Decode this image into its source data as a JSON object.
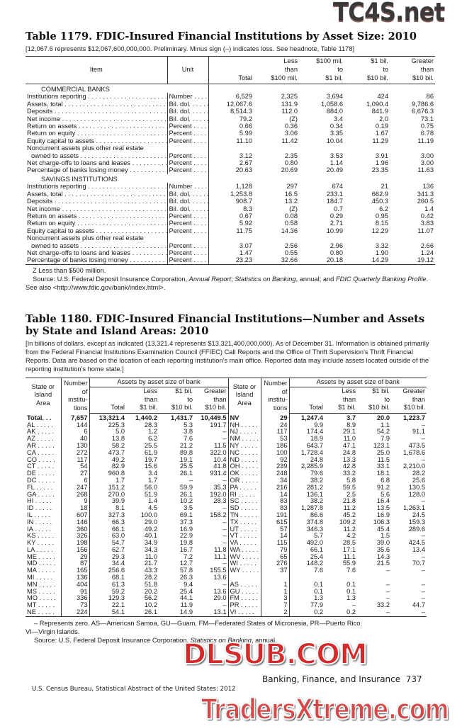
{
  "table1179": {
    "title": "Table 1179. FDIC-Insured Financial Institutions by Asset Size: 2010",
    "headnote": "[12,067.6 represents $12,067,600,000,000. Preliminary. Minus sign (–) indicates loss. See headnote, Table 1178]",
    "headers": {
      "item": "Item",
      "unit": "Unit",
      "total": "Total",
      "less": [
        "Less",
        "than",
        "$100 mil."
      ],
      "mid": [
        "$100 mil.",
        "to",
        "$1 bil."
      ],
      "big": [
        "$1 bil.",
        "to",
        "$10 bil."
      ],
      "greater": [
        "Greater",
        "than",
        "$10 bil."
      ]
    },
    "sections": [
      {
        "name": "COMMERCIAL BANKS",
        "rows": [
          {
            "item": "Institutions reporting",
            "unit": "Number",
            "v": [
              "6,529",
              "2,325",
              "3,694",
              "424",
              "86"
            ]
          },
          {
            "item": "Assets, total",
            "unit": "Bil. dol.",
            "v": [
              "12,067.6",
              "131.9",
              "1,058.6",
              "1,090.4",
              "9,786.6"
            ]
          },
          {
            "item": "Deposits",
            "unit": "Bil. dol.",
            "v": [
              "8,514.3",
              "112.0",
              "884.0",
              "841.9",
              "6,676.3"
            ]
          },
          {
            "item": "Net income",
            "unit": "Bil. dol.",
            "v": [
              "79.2",
              "(Z)",
              "3.4",
              "2.0",
              "73.1"
            ]
          },
          {
            "item": "Return on assets",
            "unit": "Percent",
            "v": [
              "0.66",
              "0.36",
              "0.34",
              "0.19",
              "0.75"
            ]
          },
          {
            "item": "Return on equity",
            "unit": "Percent",
            "v": [
              "5.99",
              "3.06",
              "3.35",
              "1.67",
              "6.78"
            ]
          },
          {
            "item": "Equity capital to assets",
            "unit": "Percent",
            "v": [
              "11.10",
              "11.42",
              "10.04",
              "11.29",
              "11.19"
            ]
          },
          {
            "item": "Noncurrent assets plus other real estate",
            "unit": "",
            "v": null
          },
          {
            "item": "owned to assets",
            "unit": "Percent",
            "v": [
              "3.12",
              "2.35",
              "3.53",
              "3.91",
              "3.00"
            ],
            "indent": true
          },
          {
            "item": "Net charge-offs to loans and leases",
            "unit": "Percent",
            "v": [
              "2.67",
              "0.80",
              "1.14",
              "1.96",
              "3.00"
            ]
          },
          {
            "item": "Percentage of banks losing money",
            "unit": "Percent",
            "v": [
              "20.63",
              "20.69",
              "20.49",
              "23.35",
              "11.63"
            ]
          }
        ]
      },
      {
        "name": "SAVINGS INSTITUTIONS",
        "rows": [
          {
            "item": "Institutions reporting",
            "unit": "Number",
            "v": [
              "1,128",
              "297",
              "674",
              "21",
              "136"
            ]
          },
          {
            "item": "Assets, total",
            "unit": "Bil. dol.",
            "v": [
              "1,253.8",
              "16.5",
              "233.1",
              "662.9",
              "341.3"
            ]
          },
          {
            "item": "Deposits",
            "unit": "Bil. dol.",
            "v": [
              "908.7",
              "13.2",
              "184.7",
              "450.3",
              "260.5"
            ]
          },
          {
            "item": "Net income",
            "unit": "Bil. dol.",
            "v": [
              "8.3",
              "(Z)",
              "0.7",
              "6.2",
              "1.4"
            ]
          },
          {
            "item": "Return on assets",
            "unit": "Percent",
            "v": [
              "0.67",
              "0.08",
              "0.29",
              "0.95",
              "0.42"
            ]
          },
          {
            "item": "Return on equity",
            "unit": "Percent",
            "v": [
              "5.92",
              "0.58",
              "2.71",
              "8.15",
              "3.83"
            ]
          },
          {
            "item": "Equity capital to assets",
            "unit": "Percent",
            "v": [
              "11.75",
              "14.36",
              "10.99",
              "12.29",
              "11.07"
            ]
          },
          {
            "item": "Noncurrent assets plus other real estate",
            "unit": "",
            "v": null
          },
          {
            "item": "owned to assets",
            "unit": "Percent",
            "v": [
              "3.07",
              "2.56",
              "2.96",
              "3.32",
              "2.66"
            ],
            "indent": true
          },
          {
            "item": "Net charge-offs to loans and leases",
            "unit": "Percent",
            "v": [
              "1.47",
              "0.55",
              "0.80",
              "1.90",
              "1.24"
            ]
          },
          {
            "item": "Percentage of banks losing money",
            "unit": "Percent",
            "v": [
              "23.23",
              "32.66",
              "20.18",
              "14.29",
              "19.12"
            ]
          }
        ]
      }
    ],
    "footnote_z": "Z Less than $500 million.",
    "source_parts": [
      "Source: U.S. Federal Deposit Insurance Corporation, ",
      "Annual Report",
      "; ",
      "Statistics on Banking",
      ", annual; and ",
      "FDIC Quarterly Banking Profile",
      ". See also <http://www.fdic.gov/bank/index.html>."
    ]
  },
  "table1180": {
    "title_line1": "Table 1180. FDIC-Insured Financial Institutions—Number and Assets",
    "title_line2": "by State and Island Areas: 2010",
    "headnote": "[In billions of dollars, except as indicated (13,321.4 represents $13,321,400,000,000). As of December 31. Information is obtained primarily from the Federal Financial Institutions Examination Council (FFIEC) Call Reports and the Office of Thrift Supervision's Thrift Financial Reports. Data are based on the location of each reporting institution's main office. Reported data may include assets located outside of the reporting institution's home state.]",
    "headers": {
      "state": [
        "State or",
        "Island",
        "Area"
      ],
      "number": [
        "Number",
        "of",
        "institu-",
        "tions"
      ],
      "group": "Assets by asset size of bank",
      "total": "Total",
      "less": [
        "Less",
        "than",
        "$1 bil."
      ],
      "mid": [
        "$1 bil.",
        "to",
        "$10 bil."
      ],
      "greater": [
        "Greater",
        "than",
        "$10 bil."
      ]
    },
    "rows": [
      {
        "l": [
          "Total. . .",
          "7,657",
          "13,321.4",
          "1,440.2",
          "1,431.7",
          "10,449.5"
        ],
        "r": [
          "NV",
          "29",
          "1,247.4",
          "3.7",
          "20.0",
          "1,223.7"
        ]
      },
      {
        "l": [
          "AL",
          "144",
          "225.3",
          "28.3",
          "5.3",
          "191.7"
        ],
        "r": [
          "NH",
          "24",
          "9.9",
          "8.9",
          "1.1",
          "–"
        ]
      },
      {
        "l": [
          "AK",
          "6",
          "5.0",
          "1.2",
          "3.8",
          "–"
        ],
        "r": [
          "NJ",
          "117",
          "174.4",
          "29.1",
          "54.2",
          "91.1"
        ]
      },
      {
        "l": [
          "AZ",
          "40",
          "13.8",
          "6.2",
          "7.6",
          "–"
        ],
        "r": [
          "NM",
          "53",
          "18.9",
          "11.0",
          "7.9",
          "–"
        ]
      },
      {
        "l": [
          "AR",
          "130",
          "58.2",
          "25.5",
          "21.2",
          "11.5"
        ],
        "r": [
          "NY",
          "186",
          "643.7",
          "47.1",
          "123.1",
          "473.5"
        ]
      },
      {
        "l": [
          "CA",
          "272",
          "473.7",
          "61.9",
          "89.8",
          "322.0"
        ],
        "r": [
          "NC",
          "100",
          "1,728.4",
          "24.8",
          "25.0",
          "1,678.6"
        ]
      },
      {
        "l": [
          "CO",
          "117",
          "49.2",
          "19.7",
          "19.1",
          "10.4"
        ],
        "r": [
          "ND",
          "92",
          "24.8",
          "13.3",
          "11.5",
          "–"
        ]
      },
      {
        "l": [
          "CT",
          "54",
          "82.9",
          "15.6",
          "25.5",
          "41.8"
        ],
        "r": [
          "OH",
          "239",
          "2,285.9",
          "42.8",
          "33.1",
          "2,210.0"
        ]
      },
      {
        "l": [
          "DE",
          "27",
          "960.8",
          "3.4",
          "26.1",
          "931.4"
        ],
        "r": [
          "OK",
          "248",
          "79.6",
          "33.2",
          "18.1",
          "28.2"
        ]
      },
      {
        "l": [
          "DC",
          "6",
          "1.7",
          "1.7",
          "–",
          "–"
        ],
        "r": [
          "OR",
          "34",
          "38.2",
          "5.8",
          "6.8",
          "25.6"
        ]
      },
      {
        "l": [
          "FL",
          "247",
          "151.2",
          "56.0",
          "59.9",
          "35.3"
        ],
        "r": [
          "PA",
          "216",
          "281.2",
          "59.5",
          "91.2",
          "130.5"
        ]
      },
      {
        "l": [
          "GA",
          "268",
          "270.0",
          "51.9",
          "26.1",
          "192.0"
        ],
        "r": [
          "RI",
          "14",
          "136.1",
          "2.5",
          "5.6",
          "128.0"
        ]
      },
      {
        "l": [
          "HI",
          "9",
          "39.9",
          "1.4",
          "10.2",
          "28.3"
        ],
        "r": [
          "SC",
          "83",
          "38.2",
          "21.8",
          "16.4",
          "–"
        ]
      },
      {
        "l": [
          "ID",
          "18",
          "8.1",
          "4.5",
          "3.5",
          "–"
        ],
        "r": [
          "SD",
          "83",
          "1,287.8",
          "11.2",
          "13.5",
          "1,263.1"
        ]
      },
      {
        "l": [
          "IL",
          "607",
          "327.3",
          "100.0",
          "69.1",
          "158.2"
        ],
        "r": [
          "TN",
          "191",
          "86.6",
          "45.2",
          "16.9",
          "24.5"
        ]
      },
      {
        "l": [
          "IN",
          "146",
          "66.3",
          "29.0",
          "37.3",
          "–"
        ],
        "r": [
          "TX",
          "615",
          "374.8",
          "109.2",
          "106.3",
          "159.3"
        ]
      },
      {
        "l": [
          "IA",
          "360",
          "66.1",
          "49.2",
          "16.9",
          "–"
        ],
        "r": [
          "UT",
          "57",
          "346.3",
          "11.2",
          "45.4",
          "289.6"
        ]
      },
      {
        "l": [
          "KS",
          "326",
          "63.0",
          "40.1",
          "22.9",
          "–"
        ],
        "r": [
          "VT",
          "14",
          "5.7",
          "4.2",
          "1.5",
          "–"
        ]
      },
      {
        "l": [
          "KY",
          "198",
          "54.7",
          "34.9",
          "19.8",
          "–"
        ],
        "r": [
          "VA",
          "115",
          "492.0",
          "28.5",
          "39.0",
          "424.5"
        ]
      },
      {
        "l": [
          "LA",
          "156",
          "62.7",
          "34.3",
          "16.7",
          "11.8"
        ],
        "r": [
          "WA",
          "79",
          "66.1",
          "17.1",
          "35.6",
          "13.4"
        ]
      },
      {
        "l": [
          "ME",
          "29",
          "29.3",
          "11.0",
          "7.2",
          "11.1"
        ],
        "r": [
          "WV",
          "65",
          "25.4",
          "11.1",
          "14.3",
          "–"
        ]
      },
      {
        "l": [
          "MD",
          "87",
          "34.4",
          "21.7",
          "12.7",
          "–"
        ],
        "r": [
          "WI",
          "276",
          "148.2",
          "55.9",
          "21.5",
          "70.7"
        ]
      },
      {
        "l": [
          "MA",
          "165",
          "256.6",
          "43.3",
          "57.8",
          "155.5"
        ],
        "r": [
          "WY",
          "37",
          "7.6",
          "7.6",
          "–",
          "–"
        ]
      },
      {
        "l": [
          "MI",
          "136",
          "68.1",
          "28.2",
          "26.3",
          "13.6"
        ],
        "r": null
      },
      {
        "l": [
          "MN",
          "404",
          "61.3",
          "51.8",
          "9.4",
          "–"
        ],
        "r": [
          "AS",
          "1",
          "0.1",
          "0.1",
          "–",
          "–"
        ]
      },
      {
        "l": [
          "MS",
          "91",
          "59.2",
          "20.2",
          "25.4",
          "13.6"
        ],
        "r": [
          "GU",
          "1",
          "0.1",
          "0.1",
          "–",
          "–"
        ]
      },
      {
        "l": [
          "MO",
          "336",
          "129.3",
          "56.2",
          "44.1",
          "29.0"
        ],
        "r": [
          "FM",
          "3",
          "1.3",
          "1.3",
          "–",
          "–"
        ]
      },
      {
        "l": [
          "MT",
          "73",
          "22.1",
          "10.2",
          "11.9",
          "–"
        ],
        "r": [
          "PR",
          "7",
          "77.9",
          "–",
          "33.2",
          "44.7"
        ]
      },
      {
        "l": [
          "NE",
          "224",
          "54.1",
          "26.1",
          "14.9",
          "13.1"
        ],
        "r": [
          "VI",
          "2",
          "0.2",
          "0.2",
          "–",
          "–"
        ]
      }
    ],
    "footnote_line1": "– Represents zero. AS—American Samoa, GU—Guam, FM—Federated States of Micronesia, PR—Puerto Rico.",
    "footnote_line2": "VI—Virgin Islands.",
    "source_parts": [
      "Source: U.S. Federal Deposit Insurance Corporation, ",
      "Statistics on Banking",
      ", annual."
    ]
  },
  "footer": {
    "section": "Banking, Finance, and Insurance",
    "page_number": "737",
    "publication": "U.S. Census Bureau, Statistical Abstract of the United States: 2012"
  },
  "watermarks": {
    "top": "TC4S.net",
    "middle": "DLSUB.COM",
    "bottom": "TradersXtreme.com"
  },
  "colors": {
    "text": "#1a1a1a",
    "rule": "#333333",
    "watermark_red": "#d42a2a",
    "watermark_gray": "#3a3a3a"
  }
}
